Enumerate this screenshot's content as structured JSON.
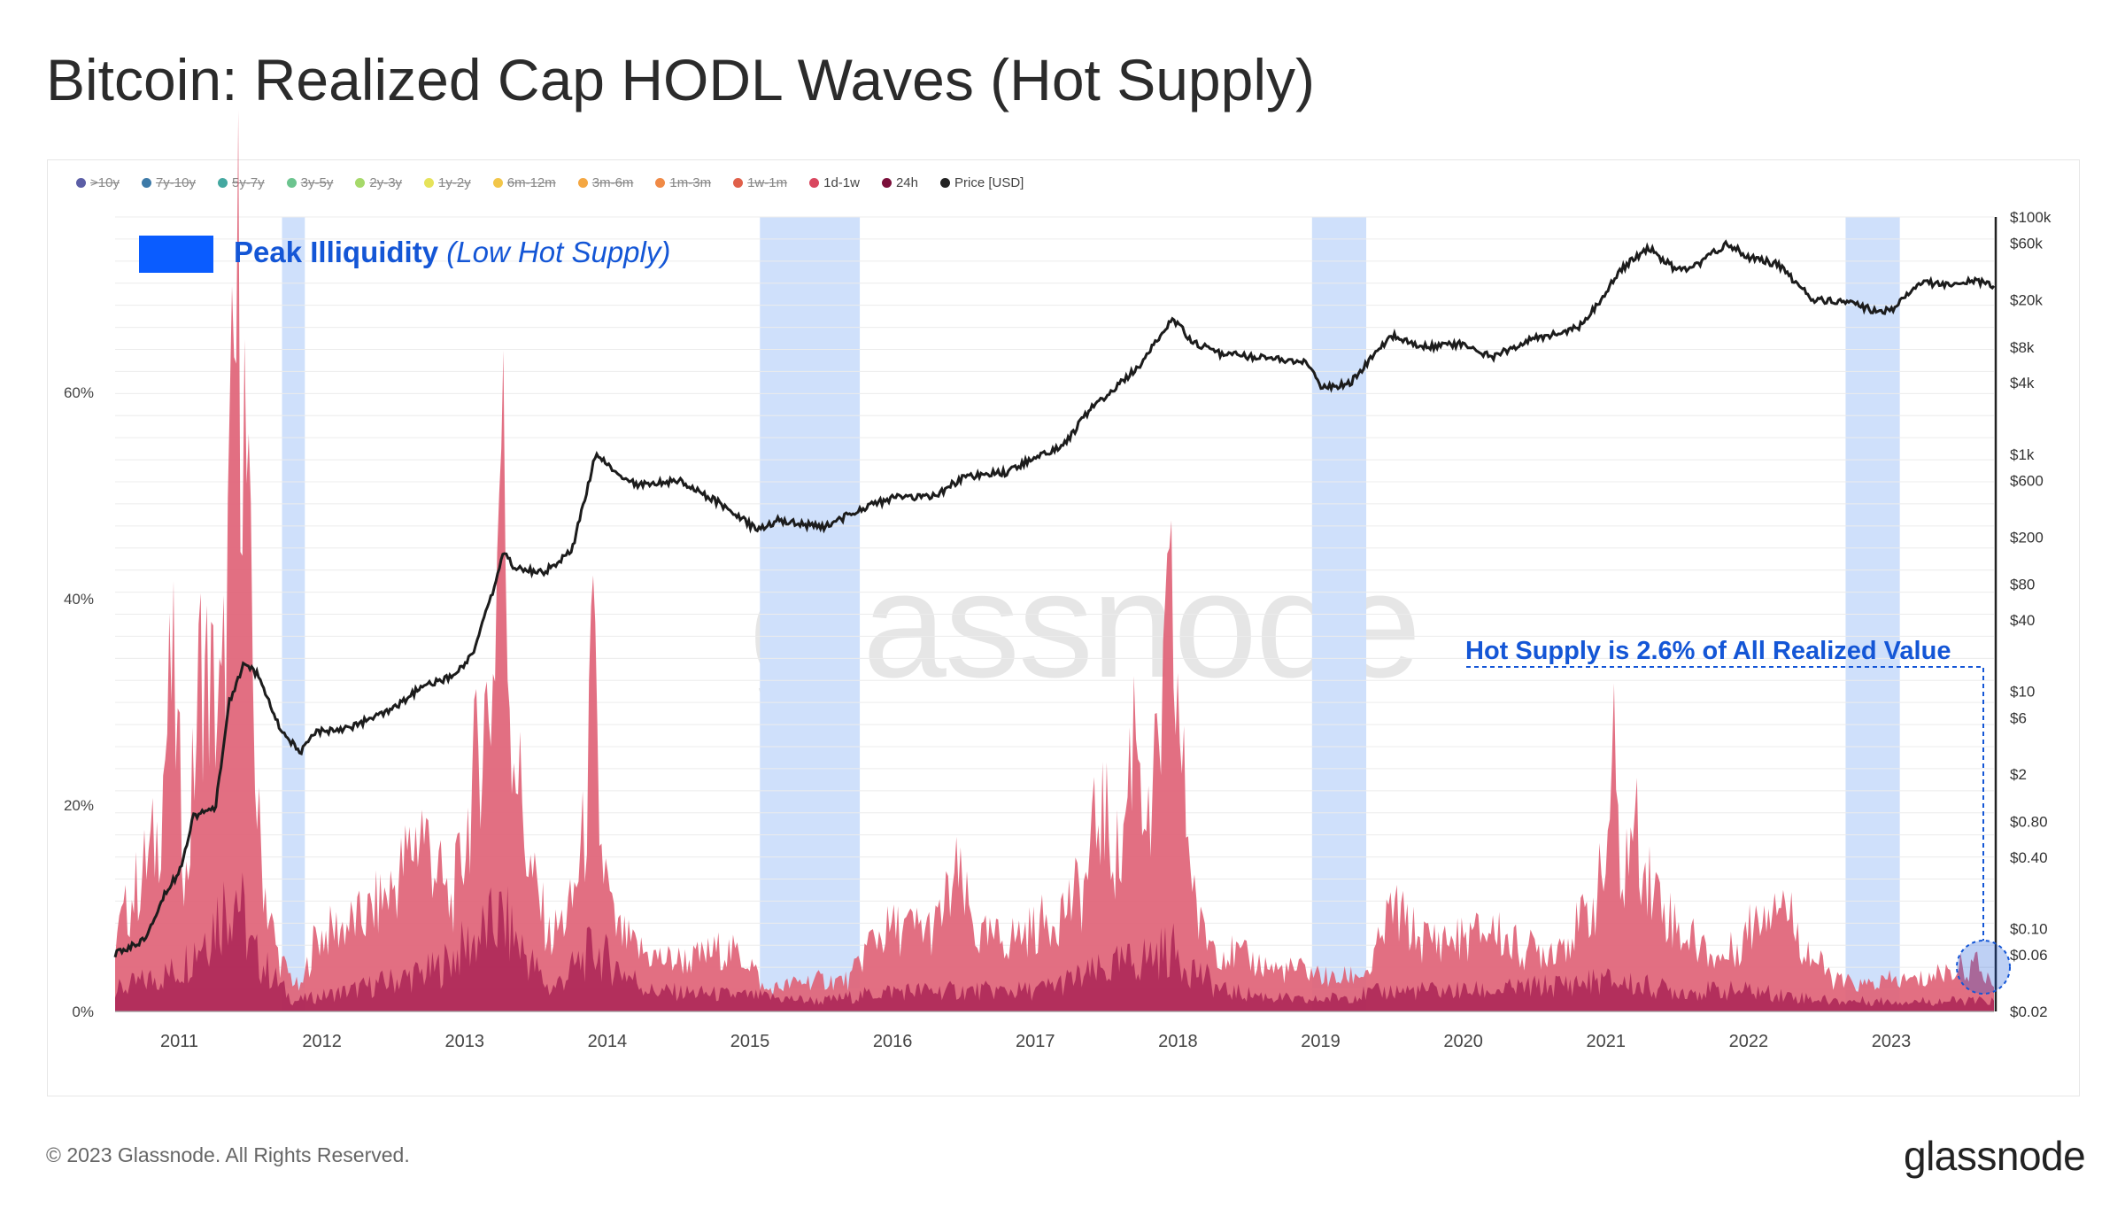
{
  "title": "Bitcoin: Realized Cap HODL Waves (Hot Supply)",
  "footer": "© 2023 Glassnode. All Rights Reserved.",
  "logo": "glassnode",
  "watermark": "glassnode",
  "legend": [
    {
      "label": ">10y",
      "color": "#5b5ea6",
      "active": false
    },
    {
      "label": "7y-10y",
      "color": "#3d7aa8",
      "active": false
    },
    {
      "label": "5y-7y",
      "color": "#44a8a0",
      "active": false
    },
    {
      "label": "3y-5y",
      "color": "#6cc48f",
      "active": false
    },
    {
      "label": "2y-3y",
      "color": "#a6d96a",
      "active": false
    },
    {
      "label": "1y-2y",
      "color": "#e6e35a",
      "active": false
    },
    {
      "label": "6m-12m",
      "color": "#f2c649",
      "active": false
    },
    {
      "label": "3m-6m",
      "color": "#f4a742",
      "active": false
    },
    {
      "label": "1m-3m",
      "color": "#f08a46",
      "active": false
    },
    {
      "label": "1w-1m",
      "color": "#e0604a",
      "active": false
    },
    {
      "label": "1d-1w",
      "color": "#d9475f",
      "active": true
    },
    {
      "label": "24h",
      "color": "#7b0f3a",
      "active": true
    },
    {
      "label": "Price [USD]",
      "color": "#222222",
      "active": true
    }
  ],
  "annotations": {
    "peak_label_bold": "Peak Illiquidity",
    "peak_label_italic": "(Low Hot Supply)",
    "hot_supply_note": "Hot Supply is 2.6% of All Realized Value"
  },
  "colors": {
    "band": "#cfe0fb",
    "band_key": "#0a5cff",
    "annotation_text": "#1456d6",
    "series_1d_1w": "#e06377",
    "series_24h": "#a3194f",
    "price": "#1c1c1c"
  },
  "chart_data": {
    "type": "area",
    "title": "Bitcoin: Realized Cap HODL Waves (Hot Supply)",
    "x_ticks": [
      "2011",
      "2012",
      "2013",
      "2014",
      "2015",
      "2016",
      "2017",
      "2018",
      "2019",
      "2020",
      "2021",
      "2022",
      "2023"
    ],
    "x_range": [
      2010.55,
      2023.72
    ],
    "y_left_ticks": [
      "0%",
      "20%",
      "40%",
      "60%"
    ],
    "y_left_range": [
      0,
      0.77
    ],
    "y_right_ticks": [
      {
        "label": "$100k",
        "value": 100000
      },
      {
        "label": "$60k",
        "value": 60000
      },
      {
        "label": "$20k",
        "value": 20000
      },
      {
        "label": "$8k",
        "value": 8000
      },
      {
        "label": "$4k",
        "value": 4000
      },
      {
        "label": "$1k",
        "value": 1000
      },
      {
        "label": "$600",
        "value": 600
      },
      {
        "label": "$200",
        "value": 200
      },
      {
        "label": "$80",
        "value": 80
      },
      {
        "label": "$40",
        "value": 40
      },
      {
        "label": "$10",
        "value": 10
      },
      {
        "label": "$6",
        "value": 6
      },
      {
        "label": "$2",
        "value": 2
      },
      {
        "label": "$0.80",
        "value": 0.8
      },
      {
        "label": "$0.40",
        "value": 0.4
      },
      {
        "label": "$0.10",
        "value": 0.1
      },
      {
        "label": "$0.06",
        "value": 0.06
      },
      {
        "label": "$0.02",
        "value": 0.02
      }
    ],
    "y_right_scale": "log",
    "y_right_range": [
      0.02,
      100000
    ],
    "highlight_bands": [
      [
        2011.72,
        2011.88
      ],
      [
        2015.07,
        2015.77
      ],
      [
        2018.94,
        2019.32
      ],
      [
        2022.68,
        2023.06
      ]
    ],
    "series": [
      {
        "name": "1d-1w",
        "x": [
          2010.55,
          2010.7,
          2010.85,
          2010.95,
          2011.05,
          2011.15,
          2011.3,
          2011.38,
          2011.42,
          2011.45,
          2011.5,
          2011.55,
          2011.62,
          2011.7,
          2011.85,
          2011.95,
          2012.1,
          2012.3,
          2012.5,
          2012.7,
          2012.8,
          2012.9,
          2013.0,
          2013.1,
          2013.2,
          2013.26,
          2013.32,
          2013.45,
          2013.6,
          2013.75,
          2013.85,
          2013.9,
          2013.95,
          2014.05,
          2014.2,
          2014.4,
          2014.6,
          2014.8,
          2015.0,
          2015.1,
          2015.4,
          2015.7,
          2015.85,
          2016.0,
          2016.3,
          2016.45,
          2016.6,
          2016.8,
          2017.0,
          2017.2,
          2017.35,
          2017.45,
          2017.6,
          2017.7,
          2017.8,
          2017.95,
          2018.05,
          2018.15,
          2018.3,
          2018.5,
          2018.7,
          2018.9,
          2019.1,
          2019.35,
          2019.5,
          2019.7,
          2020.0,
          2020.2,
          2020.4,
          2020.6,
          2020.8,
          2020.9,
          2021.0,
          2021.05,
          2021.1,
          2021.2,
          2021.3,
          2021.5,
          2021.7,
          2021.8,
          2021.9,
          2022.0,
          2022.2,
          2022.4,
          2022.6,
          2022.8,
          2023.0,
          2023.2,
          2023.4,
          2023.6,
          2023.72
        ],
        "values": [
          0.07,
          0.12,
          0.17,
          0.33,
          0.12,
          0.34,
          0.28,
          0.58,
          0.7,
          0.6,
          0.38,
          0.18,
          0.1,
          0.05,
          0.02,
          0.07,
          0.08,
          0.09,
          0.12,
          0.18,
          0.14,
          0.1,
          0.16,
          0.26,
          0.32,
          0.58,
          0.3,
          0.14,
          0.07,
          0.1,
          0.18,
          0.35,
          0.16,
          0.08,
          0.06,
          0.05,
          0.05,
          0.06,
          0.05,
          0.02,
          0.03,
          0.03,
          0.07,
          0.08,
          0.08,
          0.13,
          0.07,
          0.07,
          0.08,
          0.1,
          0.12,
          0.2,
          0.14,
          0.3,
          0.16,
          0.38,
          0.2,
          0.08,
          0.06,
          0.05,
          0.04,
          0.04,
          0.03,
          0.04,
          0.1,
          0.07,
          0.07,
          0.08,
          0.06,
          0.06,
          0.08,
          0.1,
          0.14,
          0.26,
          0.12,
          0.18,
          0.13,
          0.08,
          0.06,
          0.05,
          0.06,
          0.08,
          0.12,
          0.06,
          0.03,
          0.025,
          0.03,
          0.03,
          0.04,
          0.045,
          0.026
        ]
      },
      {
        "name": "24h",
        "x": [
          2010.55,
          2011.0,
          2011.4,
          2011.5,
          2011.8,
          2012.2,
          2012.8,
          2013.26,
          2013.6,
          2013.9,
          2014.3,
          2015.0,
          2015.5,
          2016.0,
          2016.6,
          2017.0,
          2017.5,
          2017.95,
          2018.3,
          2018.9,
          2019.5,
          2020.2,
          2021.0,
          2021.5,
          2022.0,
          2022.6,
          2023.0,
          2023.72
        ],
        "values": [
          0.02,
          0.04,
          0.12,
          0.06,
          0.01,
          0.02,
          0.04,
          0.09,
          0.02,
          0.06,
          0.02,
          0.015,
          0.01,
          0.02,
          0.02,
          0.02,
          0.04,
          0.06,
          0.02,
          0.01,
          0.02,
          0.02,
          0.03,
          0.02,
          0.02,
          0.01,
          0.01,
          0.01
        ]
      },
      {
        "name": "Price [USD]",
        "x": [
          2010.55,
          2010.75,
          2010.9,
          2011.0,
          2011.1,
          2011.25,
          2011.35,
          2011.45,
          2011.55,
          2011.7,
          2011.85,
          2011.95,
          2012.2,
          2012.5,
          2012.7,
          2012.9,
          2013.05,
          2013.2,
          2013.27,
          2013.35,
          2013.55,
          2013.75,
          2013.92,
          2014.0,
          2014.2,
          2014.5,
          2014.8,
          2015.05,
          2015.2,
          2015.5,
          2015.8,
          2016.0,
          2016.3,
          2016.5,
          2016.8,
          2017.0,
          2017.2,
          2017.4,
          2017.6,
          2017.75,
          2017.96,
          2018.1,
          2018.3,
          2018.6,
          2018.9,
          2019.0,
          2019.2,
          2019.5,
          2019.7,
          2020.0,
          2020.2,
          2020.5,
          2020.8,
          2020.95,
          2021.1,
          2021.3,
          2021.5,
          2021.65,
          2021.85,
          2022.0,
          2022.2,
          2022.45,
          2022.7,
          2022.9,
          2023.0,
          2023.2,
          2023.4,
          2023.6,
          2023.72
        ],
        "values": [
          0.06,
          0.08,
          0.2,
          0.3,
          0.9,
          1,
          8,
          17,
          14,
          5,
          3,
          4.5,
          5,
          7,
          11,
          13,
          20,
          70,
          150,
          110,
          100,
          150,
          1000,
          800,
          550,
          600,
          380,
          230,
          280,
          240,
          350,
          430,
          440,
          650,
          700,
          950,
          1200,
          2500,
          4000,
          6000,
          14000,
          9000,
          7000,
          6500,
          6000,
          3700,
          3900,
          10000,
          8000,
          8500,
          6500,
          9500,
          11500,
          19000,
          36000,
          55000,
          35000,
          40000,
          60000,
          46000,
          40000,
          20000,
          19000,
          16000,
          16500,
          28000,
          27000,
          29000,
          26000
        ]
      }
    ],
    "annotation_value": "2.6%"
  }
}
